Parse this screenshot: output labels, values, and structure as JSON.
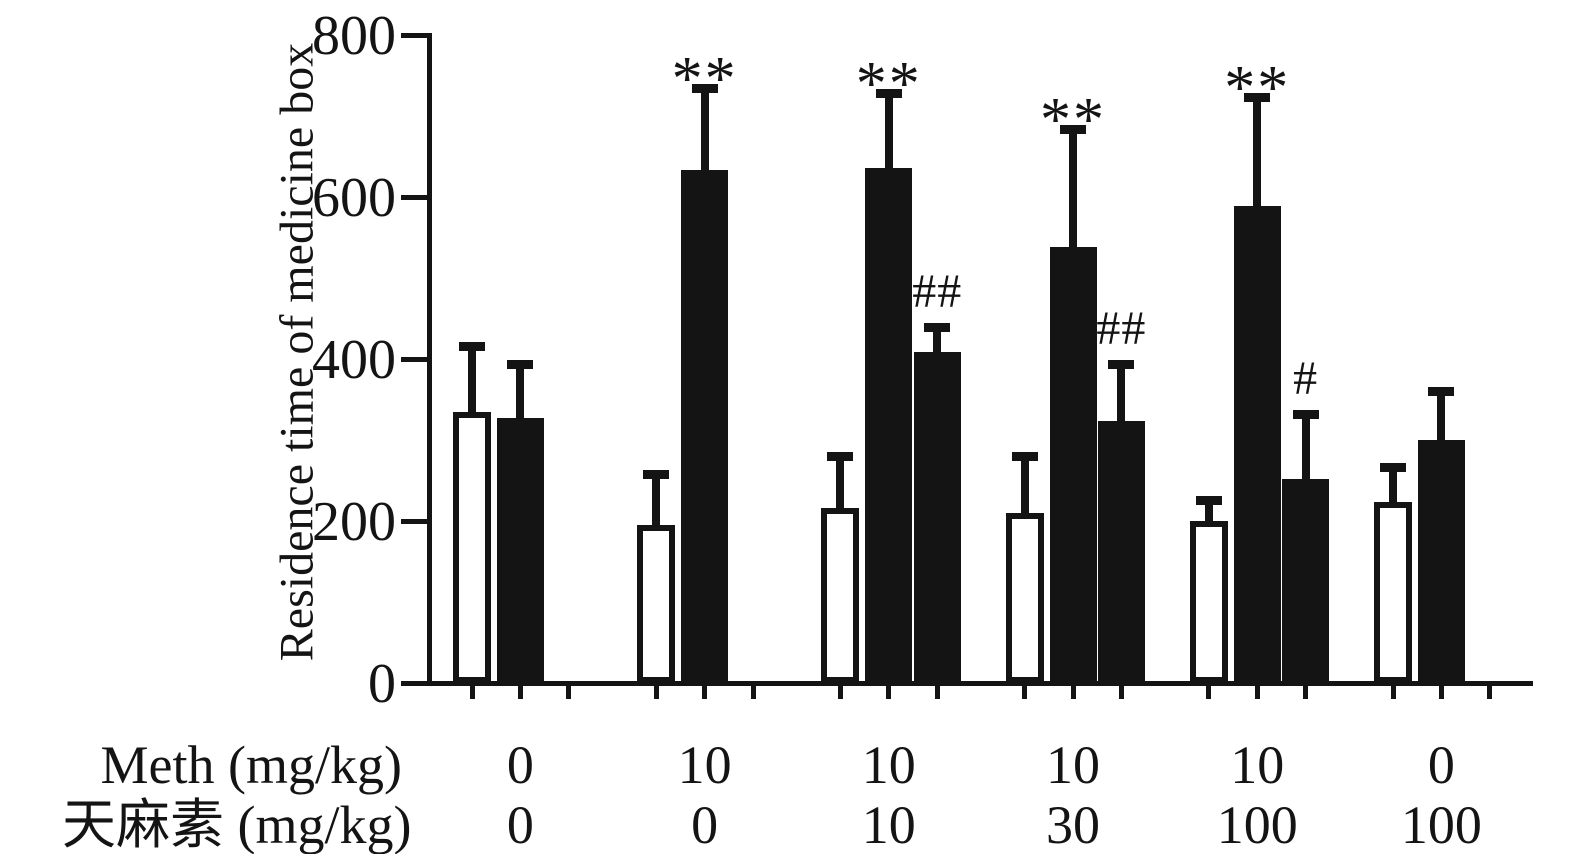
{
  "y_axis": {
    "title": "Residence time of medicine box",
    "ticks": [
      "0",
      "200",
      "400",
      "600",
      "800"
    ],
    "tick_values": [
      0,
      200,
      400,
      600,
      800
    ],
    "max": 800
  },
  "x_axis": {
    "rows": [
      {
        "label": "Meth (mg/kg)",
        "values": [
          "0",
          "10",
          "10",
          "10",
          "10",
          "0"
        ]
      },
      {
        "label": "天麻素 (mg/kg)",
        "values": [
          "0",
          "0",
          "10",
          "30",
          "100",
          "100"
        ]
      }
    ]
  },
  "colors": {
    "ink": "#141414",
    "background": "#ffffff"
  },
  "chart_data": {
    "type": "bar",
    "title": "",
    "ylabel": "Residence time of medicine box",
    "ylim": [
      0,
      800
    ],
    "grid": false,
    "legend": "none",
    "bar_styles": {
      "white": "open/outlined bar",
      "black": "solid filled bar"
    },
    "error_bars": "upper SEM whiskers with caps",
    "groups": [
      {
        "meth": "0",
        "gastrodin": "0",
        "bars": [
          {
            "style": "white",
            "value": 335,
            "sem": 86
          },
          {
            "style": "black",
            "value": 327,
            "sem": 72
          }
        ]
      },
      {
        "meth": "10",
        "gastrodin": "0",
        "bars": [
          {
            "style": "white",
            "value": 195,
            "sem": 68
          },
          {
            "style": "black",
            "value": 633,
            "sem": 107,
            "marker": "**"
          }
        ]
      },
      {
        "meth": "10",
        "gastrodin": "10",
        "bars": [
          {
            "style": "white",
            "value": 216,
            "sem": 69
          },
          {
            "style": "black",
            "value": 636,
            "sem": 97,
            "marker": "**"
          },
          {
            "style": "black",
            "value": 409,
            "sem": 35,
            "marker": "##"
          }
        ]
      },
      {
        "meth": "10",
        "gastrodin": "30",
        "bars": [
          {
            "style": "white",
            "value": 210,
            "sem": 75
          },
          {
            "style": "black",
            "value": 538,
            "sem": 151,
            "marker": "**"
          },
          {
            "style": "black",
            "value": 323,
            "sem": 76,
            "marker": "##"
          }
        ]
      },
      {
        "meth": "10",
        "gastrodin": "100",
        "bars": [
          {
            "style": "white",
            "value": 200,
            "sem": 31
          },
          {
            "style": "black",
            "value": 589,
            "sem": 139,
            "marker": "**"
          },
          {
            "style": "black",
            "value": 252,
            "sem": 85,
            "marker": "#"
          }
        ]
      },
      {
        "meth": "0",
        "gastrodin": "100",
        "bars": [
          {
            "style": "white",
            "value": 223,
            "sem": 49
          },
          {
            "style": "black",
            "value": 300,
            "sem": 65
          }
        ]
      }
    ]
  }
}
